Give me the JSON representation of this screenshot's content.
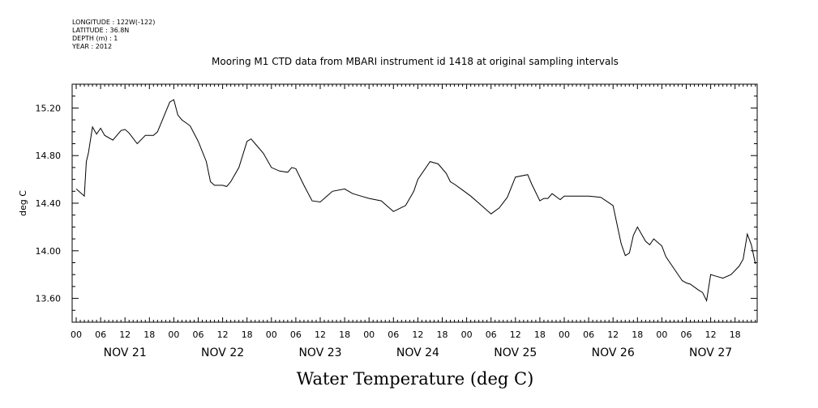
{
  "header": {
    "longitude": "LONGITUDE : 122W(-122)",
    "latitude": "LATITUDE : 36.8N",
    "depth": "DEPTH (m) : 1",
    "year": "YEAR : 2012"
  },
  "chart_data": {
    "type": "line",
    "title": "Mooring M1 CTD data from MBARI instrument id 1418 at original sampling intervals",
    "xlabel": "Water Temperature (deg C)",
    "ylabel": "deg C",
    "ylim": [
      13.4,
      15.4
    ],
    "xlim": [
      "2012-11-21 00:00",
      "2012-11-28 00:00"
    ],
    "yticks": [
      "15.20",
      "14.80",
      "14.40",
      "14.00",
      "13.60"
    ],
    "yticks_values": [
      15.2,
      14.8,
      14.4,
      14.0,
      13.6
    ],
    "hour_ticks": [
      "00",
      "06",
      "12",
      "18",
      "00",
      "06",
      "12",
      "18",
      "00",
      "06",
      "12",
      "18",
      "00",
      "06",
      "12",
      "18",
      "00",
      "06",
      "12",
      "18",
      "00",
      "06",
      "12",
      "18",
      "00",
      "06",
      "12",
      "18"
    ],
    "day_labels": [
      "NOV 21",
      "NOV 22",
      "NOV 23",
      "NOV 24",
      "NOV 25",
      "NOV 26",
      "NOV 27"
    ],
    "grid": false,
    "series": [
      {
        "x": [
          "2012-11-21 00:00",
          "2012-11-21 02:00",
          "2012-11-21 02:30",
          "2012-11-21 03:00",
          "2012-11-21 04:00",
          "2012-11-21 05:00",
          "2012-11-21 06:00",
          "2012-11-21 07:00",
          "2012-11-21 09:00",
          "2012-11-21 11:00",
          "2012-11-21 12:00",
          "2012-11-21 13:00",
          "2012-11-21 15:00",
          "2012-11-21 17:00",
          "2012-11-21 19:00",
          "2012-11-21 20:00",
          "2012-11-21 23:00",
          "2012-11-22 00:00",
          "2012-11-22 01:00",
          "2012-11-22 02:00",
          "2012-11-22 04:00",
          "2012-11-22 06:00",
          "2012-11-22 08:00",
          "2012-11-22 09:00",
          "2012-11-22 10:00",
          "2012-11-22 12:00",
          "2012-11-22 13:00",
          "2012-11-22 14:00",
          "2012-11-22 16:00",
          "2012-11-22 18:00",
          "2012-11-22 19:00",
          "2012-11-22 20:00",
          "2012-11-22 22:00",
          "2012-11-23 00:00",
          "2012-11-23 02:00",
          "2012-11-23 04:00",
          "2012-11-23 05:00",
          "2012-11-23 06:00",
          "2012-11-23 08:00",
          "2012-11-23 10:00",
          "2012-11-23 12:00",
          "2012-11-23 14:00",
          "2012-11-23 15:00",
          "2012-11-23 18:00",
          "2012-11-23 20:00",
          "2012-11-23 22:00",
          "2012-11-24 00:00",
          "2012-11-24 03:00",
          "2012-11-24 06:00",
          "2012-11-24 09:00",
          "2012-11-24 11:00",
          "2012-11-24 12:00",
          "2012-11-24 15:00",
          "2012-11-24 17:00",
          "2012-11-24 19:00",
          "2012-11-24 20:00",
          "2012-11-24 21:00",
          "2012-11-24 23:00",
          "2012-11-25 01:00",
          "2012-11-25 03:00",
          "2012-11-25 06:00",
          "2012-11-25 08:00",
          "2012-11-25 10:00",
          "2012-11-25 12:00",
          "2012-11-25 15:00",
          "2012-11-25 16:00",
          "2012-11-25 18:00",
          "2012-11-25 19:00",
          "2012-11-25 20:00",
          "2012-11-25 21:00",
          "2012-11-25 23:00",
          "2012-11-26 00:00",
          "2012-11-26 03:00",
          "2012-11-26 06:00",
          "2012-11-26 09:00",
          "2012-11-26 12:00",
          "2012-11-26 13:00",
          "2012-11-26 14:00",
          "2012-11-26 15:00",
          "2012-11-26 16:00",
          "2012-11-26 17:00",
          "2012-11-26 18:00",
          "2012-11-26 19:00",
          "2012-11-26 20:00",
          "2012-11-26 21:00",
          "2012-11-26 22:00",
          "2012-11-27 00:00",
          "2012-11-27 01:00",
          "2012-11-27 03:00",
          "2012-11-27 05:00",
          "2012-11-27 06:00",
          "2012-11-27 07:00",
          "2012-11-27 09:00",
          "2012-11-27 10:00",
          "2012-11-27 11:00",
          "2012-11-27 12:00",
          "2012-11-27 13:00",
          "2012-11-27 15:00",
          "2012-11-27 17:00",
          "2012-11-27 19:00",
          "2012-11-27 20:00",
          "2012-11-27 21:00",
          "2012-11-27 22:00",
          "2012-11-27 23:00"
        ],
        "y": [
          14.52,
          14.46,
          14.75,
          14.82,
          15.04,
          14.98,
          15.03,
          14.97,
          14.93,
          15.01,
          15.02,
          14.99,
          14.9,
          14.97,
          14.97,
          15.0,
          15.25,
          15.27,
          15.14,
          15.1,
          15.05,
          14.92,
          14.75,
          14.58,
          14.55,
          14.55,
          14.54,
          14.58,
          14.7,
          14.92,
          14.94,
          14.9,
          14.82,
          14.7,
          14.67,
          14.66,
          14.7,
          14.69,
          14.55,
          14.42,
          14.41,
          14.47,
          14.5,
          14.52,
          14.48,
          14.46,
          14.44,
          14.42,
          14.33,
          14.38,
          14.5,
          14.6,
          14.75,
          14.73,
          14.65,
          14.58,
          14.56,
          14.51,
          14.46,
          14.4,
          14.31,
          14.36,
          14.45,
          14.62,
          14.64,
          14.56,
          14.42,
          14.44,
          14.44,
          14.48,
          14.43,
          14.46,
          14.46,
          14.46,
          14.45,
          14.38,
          14.22,
          14.06,
          13.96,
          13.98,
          14.13,
          14.2,
          14.14,
          14.08,
          14.05,
          14.1,
          14.04,
          13.95,
          13.85,
          13.75,
          13.73,
          13.72,
          13.67,
          13.65,
          13.58,
          13.8,
          13.79,
          13.77,
          13.8,
          13.87,
          13.93,
          14.14,
          14.05,
          13.89
        ]
      }
    ]
  }
}
